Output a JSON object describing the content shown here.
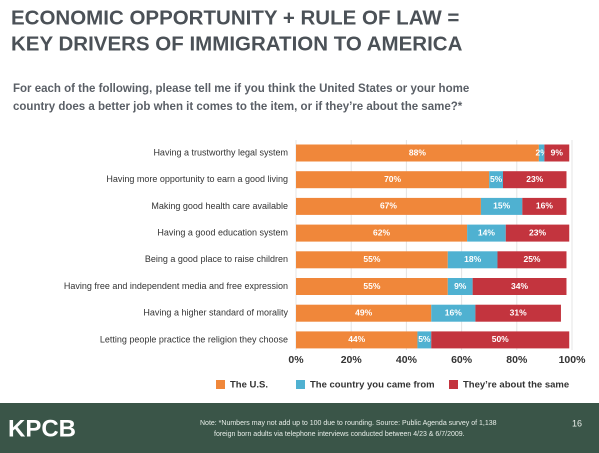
{
  "chart_data": {
    "type": "stacked-bar-horizontal",
    "title": [
      "ECONOMIC OPPORTUNITY + RULE OF LAW =",
      "KEY DRIVERS OF IMMIGRATION TO AMERICA"
    ],
    "subtitle": [
      "For each of the following, please tell me if you think the United States or your home",
      "country does a better job when it comes to the item, or if they’re about the same?*"
    ],
    "categories": [
      "Having a trustworthy legal system",
      "Having more opportunity to earn a good living",
      "Making good health care available",
      "Having a good education system",
      "Being a good place to raise children",
      "Having free and independent media and free expression",
      "Having a higher standard of morality",
      "Letting people practice the religion they choose"
    ],
    "series": [
      {
        "name": "The U.S.",
        "color": "#f0873a",
        "values": [
          88,
          70,
          67,
          62,
          55,
          55,
          49,
          44
        ],
        "value_labels": [
          "88%",
          "70%",
          "67%",
          "62%",
          "55%",
          "55%",
          "49%",
          "44%"
        ]
      },
      {
        "name": "The country you came from",
        "color": "#4fb1d1",
        "values": [
          2,
          5,
          15,
          14,
          18,
          9,
          16,
          5
        ],
        "value_labels": [
          "2%",
          "5%",
          "15%",
          "14%",
          "18%",
          "9%",
          "16%",
          "5%"
        ]
      },
      {
        "name": "They’re about the same",
        "color": "#c3343e",
        "values": [
          9,
          23,
          16,
          23,
          25,
          34,
          31,
          50
        ],
        "value_labels": [
          "9%",
          "23%",
          "16%",
          "23%",
          "25%",
          "34%",
          "31%",
          "50%"
        ]
      }
    ],
    "xlim": [
      0,
      100
    ],
    "xticks": [
      {
        "value": 0,
        "label": "0%"
      },
      {
        "value": 20,
        "label": "20%"
      },
      {
        "value": 40,
        "label": "40%"
      },
      {
        "value": 60,
        "label": "60%"
      },
      {
        "value": 80,
        "label": "80%"
      },
      {
        "value": 100,
        "label": "100%"
      }
    ],
    "grid": true,
    "logo": "KPCB",
    "note": [
      "Note: *Numbers may not add up to 100 due to rounding. Source:  Public Agenda survey of 1,138",
      "foreign born adults via telephone interviews conducted between 4/23 & 6/7/2009."
    ],
    "page_number": "16"
  }
}
